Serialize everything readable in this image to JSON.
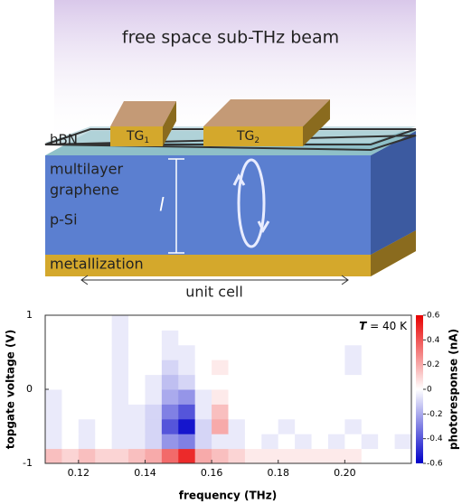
{
  "diagram": {
    "title": "free space sub-THz beam",
    "layers": {
      "top": "hBN",
      "middle_1": "multilayer",
      "middle_2": "graphene",
      "substrate": "p-Si",
      "bottom": "metallization"
    },
    "gates": [
      {
        "name": "TG",
        "index": "1"
      },
      {
        "name": "TG",
        "index": "2"
      }
    ],
    "length_symbol": "l",
    "period": "unit cell"
  },
  "chart_data": {
    "type": "heatmap",
    "xlabel": "frequency (THz)",
    "ylabel": "topgate voltage (V)",
    "colorbar_label": "photoresponse (nA)",
    "annotation": {
      "symbol": "T",
      "text": "= 40 K"
    },
    "xlim": [
      0.11,
      0.22
    ],
    "xticks": [
      {
        "value": 0.12,
        "label": "0.12"
      },
      {
        "value": 0.14,
        "label": "0.14"
      },
      {
        "value": 0.16,
        "label": "0.16"
      },
      {
        "value": 0.18,
        "label": "0.18"
      },
      {
        "value": 0.2,
        "label": "0.20"
      }
    ],
    "ylim": [
      -1,
      1
    ],
    "yticks": [
      -1,
      0,
      1
    ],
    "clim": [
      -0.6,
      0.6
    ],
    "cticks": [
      -0.6,
      -0.4,
      -0.2,
      0,
      0.2,
      0.4,
      0.6
    ],
    "colormap": [
      "#0000c8",
      "#ffffff",
      "#e80000"
    ],
    "x": [
      0.1125,
      0.1175,
      0.1225,
      0.1275,
      0.1325,
      0.1375,
      0.1425,
      0.1475,
      0.1525,
      0.1575,
      0.1625,
      0.1675,
      0.1725,
      0.1775,
      0.1825,
      0.1875,
      0.1925,
      0.1975,
      0.2025,
      0.2075,
      0.2125,
      0.2175
    ],
    "y": [
      -0.9,
      -0.7,
      -0.5,
      -0.3,
      -0.1,
      0.1,
      0.3,
      0.5,
      0.7,
      0.9
    ],
    "z": [
      [
        0.15,
        0.1,
        0.15,
        0.1,
        0.1,
        0.15,
        0.2,
        0.35,
        0.5,
        0.2,
        0.15,
        0.1,
        0.05,
        0.05,
        0.05,
        0.05,
        0.05,
        0.05,
        0.05,
        0,
        0,
        0
      ],
      [
        -0.05,
        0,
        -0.05,
        0,
        -0.05,
        -0.05,
        -0.1,
        -0.25,
        -0.3,
        -0.1,
        -0.05,
        -0.05,
        0,
        -0.05,
        0,
        -0.05,
        0,
        -0.05,
        0,
        -0.05,
        0,
        -0.05
      ],
      [
        -0.05,
        0,
        -0.05,
        0,
        -0.05,
        -0.05,
        -0.1,
        -0.4,
        -0.55,
        -0.1,
        0.2,
        -0.05,
        0,
        0,
        -0.05,
        0,
        0,
        0,
        -0.05,
        0,
        0,
        0
      ],
      [
        -0.05,
        0,
        0,
        0,
        -0.05,
        -0.05,
        -0.1,
        -0.3,
        -0.4,
        -0.05,
        0.15,
        0,
        0,
        0,
        0,
        0,
        0,
        0,
        0,
        0,
        0,
        0
      ],
      [
        -0.05,
        0,
        0,
        0,
        -0.05,
        0,
        -0.05,
        -0.2,
        -0.25,
        -0.05,
        0.05,
        0,
        0,
        0,
        0,
        0,
        0,
        0,
        0,
        0,
        0,
        0
      ],
      [
        0,
        0,
        0,
        0,
        -0.05,
        0,
        -0.05,
        -0.15,
        -0.1,
        0,
        0,
        0,
        0,
        0,
        0,
        0,
        0,
        0,
        0,
        0,
        0,
        0
      ],
      [
        0,
        0,
        0,
        0,
        -0.05,
        0,
        0,
        -0.1,
        -0.05,
        0,
        0.05,
        0,
        0,
        0,
        0,
        0,
        0,
        0,
        -0.05,
        0,
        0,
        0
      ],
      [
        0,
        0,
        0,
        0,
        -0.05,
        0,
        0,
        -0.05,
        -0.05,
        0,
        0,
        0,
        0,
        0,
        0,
        0,
        0,
        0,
        -0.05,
        0,
        0,
        0
      ],
      [
        0,
        0,
        0,
        0,
        -0.05,
        0,
        0,
        -0.05,
        0,
        0,
        0,
        0,
        0,
        0,
        0,
        0,
        0,
        0,
        0,
        0,
        0,
        0
      ],
      [
        0,
        0,
        0,
        0,
        -0.05,
        0,
        0,
        0,
        0,
        0,
        0,
        0,
        0,
        0,
        0,
        0,
        0,
        0,
        0,
        0,
        0,
        0
      ]
    ]
  }
}
